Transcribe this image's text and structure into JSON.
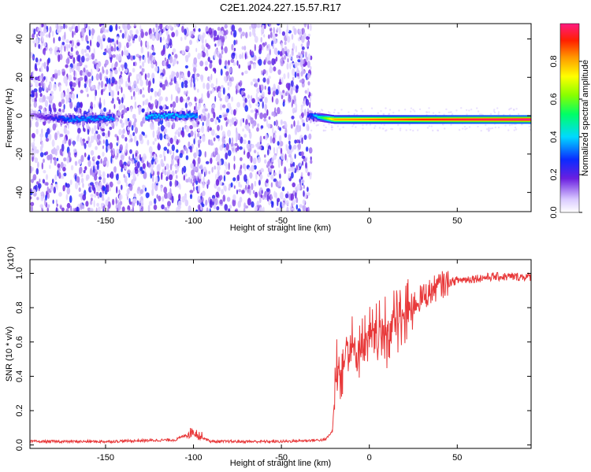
{
  "title": "C2E1.2024.227.15.57.R17",
  "colors": {
    "snr_line": "#e8393a",
    "spectrogram_base": "#6a1fe0",
    "ridge_hot": "#ff1e00",
    "frame": "#000000"
  },
  "chart_data": [
    {
      "type": "heatmap",
      "xlabel": "Height of straight line (km)",
      "ylabel": "Frequency (Hz)",
      "xlim": [
        -193,
        92
      ],
      "ylim": [
        -50,
        48
      ],
      "xticks": [
        -150,
        -100,
        -50,
        0,
        50
      ],
      "yticks": [
        -40,
        -20,
        0,
        20,
        40
      ],
      "colorbar": {
        "label": "Normalized spectral amplitude",
        "range": [
          0.0,
          1.0
        ],
        "ticks": [
          0.0,
          0.2,
          0.4,
          0.6,
          0.8
        ],
        "colormap": "rainbow"
      },
      "ridge": {
        "description_points": [
          {
            "x": -190,
            "freq": 0,
            "amp": 0.15
          },
          {
            "x": -170,
            "freq": -2,
            "amp": 0.35
          },
          {
            "x": -115,
            "freq": 0,
            "amp": 0.4
          },
          {
            "x": -35,
            "freq": 0,
            "amp": 0.25
          },
          {
            "x": -20,
            "freq": -2,
            "amp": 0.8
          },
          {
            "x": 0,
            "freq": -2,
            "amp": 0.85
          },
          {
            "x": 50,
            "freq": -2,
            "amp": 0.95
          },
          {
            "x": 90,
            "freq": -2,
            "amp": 1.0
          }
        ]
      }
    },
    {
      "type": "line",
      "xlabel": "Height of straight line (km)",
      "ylabel": "SNR (10 * v/v)",
      "yscale_label": "(x10⁴)",
      "xlim": [
        -193,
        92
      ],
      "ylim": [
        -0.02,
        1.08
      ],
      "xticks": [
        -150,
        -100,
        -50,
        0,
        50
      ],
      "yticks": [
        0.0,
        0.2,
        0.4,
        0.6,
        0.8,
        1.0
      ],
      "series": [
        {
          "x": [
            -193,
            -150,
            -110,
            -100,
            -96,
            -90,
            -50,
            -25,
            -21,
            -19,
            -15,
            -12,
            -10,
            -5,
            0,
            5,
            10,
            15,
            20,
            25,
            30,
            40,
            50,
            60,
            70,
            80,
            92
          ],
          "y": [
            0.02,
            0.02,
            0.03,
            0.08,
            0.05,
            0.02,
            0.02,
            0.03,
            0.08,
            0.4,
            0.5,
            0.6,
            0.55,
            0.58,
            0.6,
            0.62,
            0.65,
            0.72,
            0.75,
            0.82,
            0.86,
            0.93,
            0.96,
            0.97,
            0.98,
            0.98,
            0.98
          ]
        }
      ]
    }
  ]
}
